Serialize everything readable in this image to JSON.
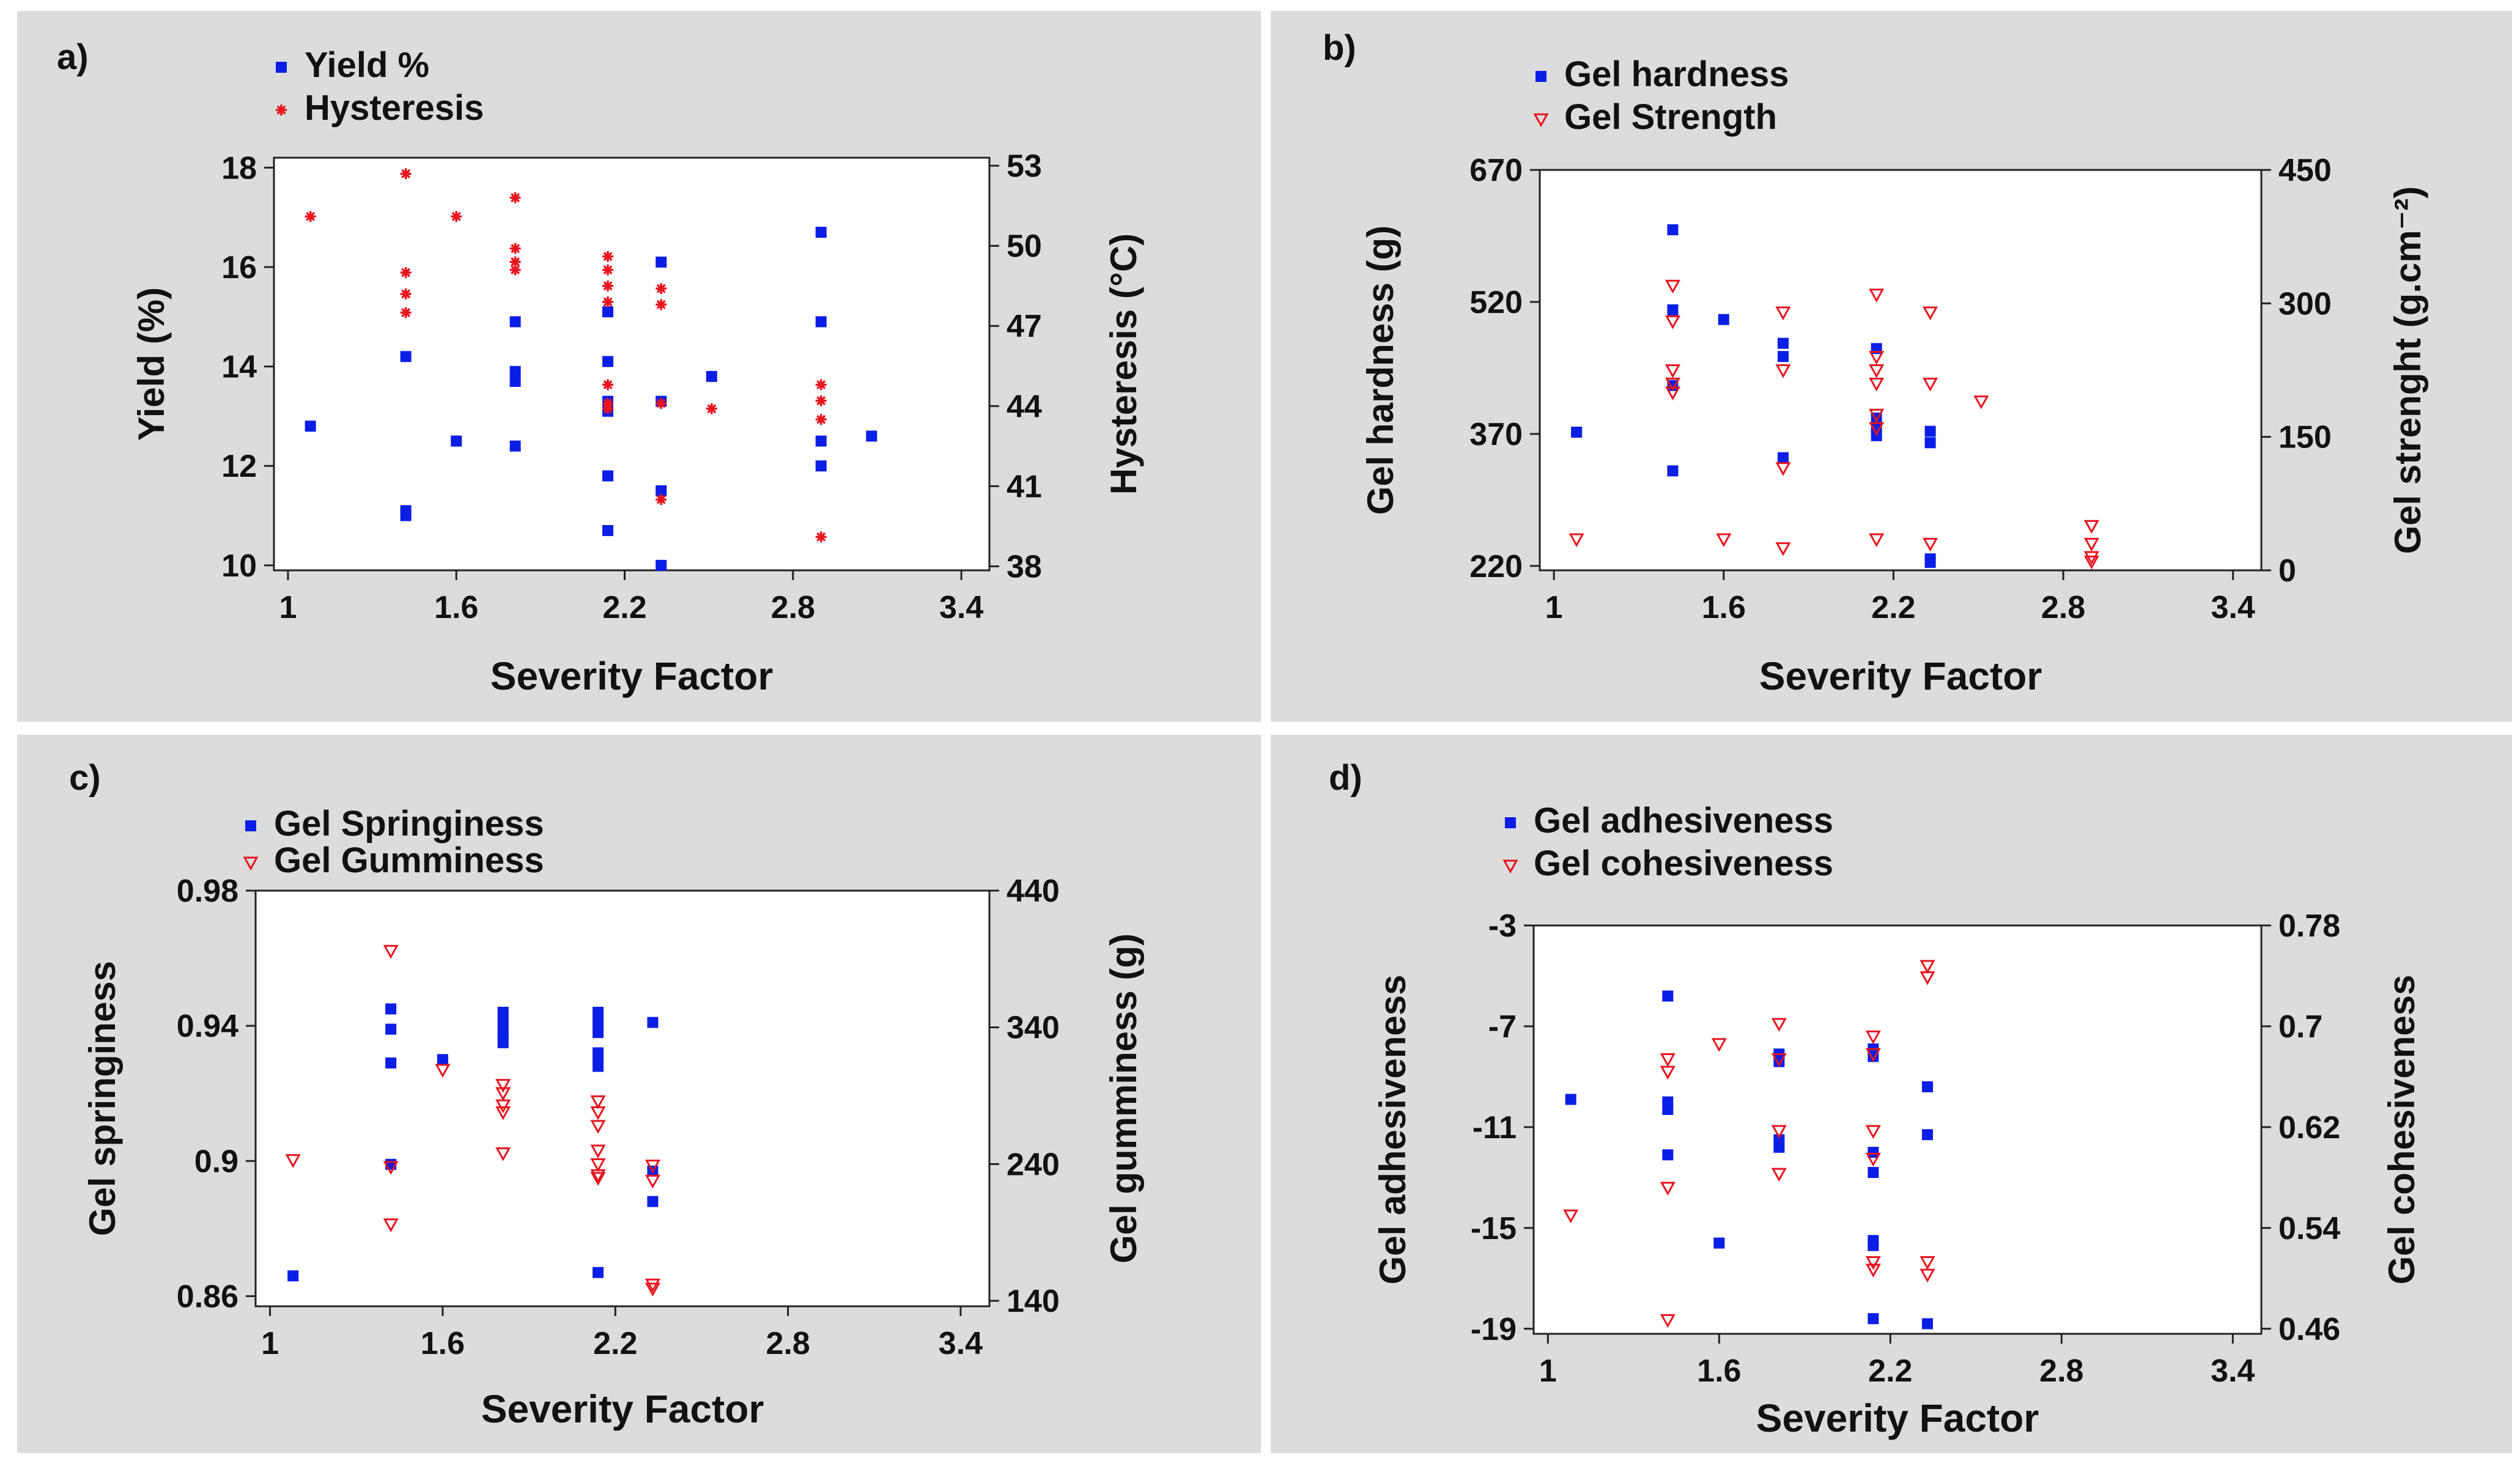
{
  "colors": {
    "blue": "#0a1ee6",
    "red": "#e8141e",
    "panel_bg": "#dcdcdc"
  },
  "chart_data": [
    {
      "id": "a",
      "panel_label": "a)",
      "type": "scatter",
      "xlabel": "Severity Factor",
      "ylabel": "Yield (%)",
      "y2label": "Hysteresis (°C)",
      "xlim": [
        0.95,
        3.5
      ],
      "ylim": [
        9.9,
        18.2
      ],
      "y2lim": [
        37.85,
        53.3
      ],
      "xticks": [
        "1",
        "1.6",
        "2.2",
        "2.8",
        "3.4"
      ],
      "yticks": [
        "10",
        "12",
        "14",
        "16",
        "18"
      ],
      "y2ticks": [
        "38",
        "41",
        "44",
        "47",
        "50",
        "53"
      ],
      "series": [
        {
          "name": "Yield %",
          "axis": "left",
          "marker": "square",
          "color": "#0a1ee6",
          "x": [
            1.08,
            1.42,
            1.42,
            1.42,
            1.6,
            1.81,
            1.81,
            1.81,
            1.81,
            2.14,
            2.14,
            2.14,
            2.14,
            2.14,
            2.14,
            2.33,
            2.33,
            2.33,
            2.33,
            2.51,
            2.9,
            2.9,
            2.9,
            2.9,
            3.08
          ],
          "y": [
            12.8,
            14.2,
            11.1,
            11.0,
            12.5,
            14.9,
            13.9,
            13.7,
            12.4,
            15.1,
            14.1,
            13.3,
            13.1,
            11.8,
            10.7,
            16.1,
            13.3,
            11.5,
            10.0,
            13.8,
            16.7,
            14.9,
            12.5,
            12.0,
            12.6
          ]
        },
        {
          "name": "Hysteresis",
          "axis": "right",
          "marker": "star",
          "color": "#e8141e",
          "x": [
            1.08,
            1.42,
            1.42,
            1.42,
            1.42,
            1.6,
            1.81,
            1.81,
            1.81,
            1.81,
            2.14,
            2.14,
            2.14,
            2.14,
            2.14,
            2.14,
            2.14,
            2.33,
            2.33,
            2.33,
            2.33,
            2.51,
            2.9,
            2.9,
            2.9,
            2.9
          ],
          "y": [
            51.1,
            52.7,
            49.0,
            48.2,
            47.5,
            51.1,
            51.8,
            49.9,
            49.4,
            49.1,
            49.6,
            49.1,
            48.5,
            47.9,
            44.8,
            44.1,
            43.9,
            48.4,
            47.8,
            44.1,
            40.5,
            43.9,
            44.8,
            44.2,
            43.5,
            39.1
          ]
        }
      ]
    },
    {
      "id": "b",
      "panel_label": "b)",
      "type": "scatter",
      "xlabel": "Severity Factor",
      "ylabel": "Gel hardness (g)",
      "y2label": "Gel strenght (g.cm⁻²)",
      "xlim": [
        0.95,
        3.5
      ],
      "ylim": [
        215,
        670
      ],
      "y2lim": [
        0,
        450
      ],
      "xticks": [
        "1",
        "1.6",
        "2.2",
        "2.8",
        "3.4"
      ],
      "yticks": [
        "220",
        "370",
        "520",
        "670"
      ],
      "y2ticks": [
        "0",
        "150",
        "300",
        "450"
      ],
      "series": [
        {
          "name": "Gel hardness",
          "axis": "left",
          "marker": "square",
          "color": "#0a1ee6",
          "x": [
            1.08,
            1.42,
            1.42,
            1.42,
            1.42,
            1.6,
            1.81,
            1.81,
            1.81,
            2.14,
            2.14,
            2.14,
            2.14,
            2.33,
            2.33,
            2.33,
            2.33
          ],
          "y": [
            372,
            602,
            511,
            425,
            328,
            500,
            473,
            458,
            343,
            467,
            388,
            376,
            368,
            373,
            360,
            228,
            224
          ]
        },
        {
          "name": "Gel Strength",
          "axis": "right",
          "marker": "triangle",
          "color": "#e8141e",
          "x": [
            1.08,
            1.42,
            1.42,
            1.42,
            1.42,
            1.42,
            1.6,
            1.81,
            1.81,
            1.81,
            1.81,
            2.14,
            2.14,
            2.14,
            2.14,
            2.14,
            2.14,
            2.14,
            2.33,
            2.33,
            2.33,
            2.51,
            2.9,
            2.9,
            2.9,
            2.9
          ],
          "y": [
            35,
            320,
            280,
            225,
            210,
            200,
            35,
            290,
            225,
            115,
            25,
            310,
            240,
            225,
            210,
            175,
            160,
            35,
            290,
            210,
            30,
            190,
            50,
            30,
            15,
            10
          ]
        }
      ]
    },
    {
      "id": "c",
      "panel_label": "c)",
      "type": "scatter",
      "xlabel": "Severity Factor",
      "ylabel": "Gel springiness",
      "y2label": "Gel gumminess (g)",
      "xlim": [
        0.95,
        3.5
      ],
      "ylim": [
        0.857,
        0.98
      ],
      "y2lim": [
        136,
        440
      ],
      "xticks": [
        "1",
        "1.6",
        "2.2",
        "2.8",
        "3.4"
      ],
      "yticks": [
        "0.86",
        "0.9",
        "0.94",
        "0.98"
      ],
      "y2ticks": [
        "140",
        "240",
        "340",
        "440"
      ],
      "series": [
        {
          "name": "Gel Springiness",
          "axis": "left",
          "marker": "square",
          "color": "#0a1ee6",
          "x": [
            1.08,
            1.42,
            1.42,
            1.42,
            1.42,
            1.6,
            1.81,
            1.81,
            1.81,
            1.81,
            1.81,
            2.14,
            2.14,
            2.14,
            2.14,
            2.14,
            2.14,
            2.14,
            2.33,
            2.33,
            2.33
          ],
          "y": [
            0.866,
            0.945,
            0.939,
            0.929,
            0.899,
            0.93,
            0.944,
            0.942,
            0.939,
            0.937,
            0.935,
            0.944,
            0.941,
            0.938,
            0.932,
            0.928,
            0.93,
            0.867,
            0.941,
            0.897,
            0.888
          ]
        },
        {
          "name": "Gel Gumminess",
          "axis": "right",
          "marker": "triangle",
          "color": "#e8141e",
          "x": [
            1.08,
            1.42,
            1.42,
            1.42,
            1.6,
            1.81,
            1.81,
            1.81,
            1.81,
            1.81,
            2.14,
            2.14,
            2.14,
            2.14,
            2.14,
            2.14,
            2.14,
            2.33,
            2.33,
            2.33,
            2.33
          ],
          "y": [
            243,
            396,
            238,
            196,
            309,
            298,
            292,
            283,
            278,
            248,
            286,
            278,
            268,
            250,
            240,
            232,
            230,
            239,
            228,
            152,
            149
          ]
        }
      ]
    },
    {
      "id": "d",
      "panel_label": "d)",
      "type": "scatter",
      "xlabel": "Severity Factor",
      "ylabel": "Gel adhesiveness",
      "y2label": "Gel cohesiveness",
      "xlim": [
        0.95,
        3.5
      ],
      "ylim": [
        -19.2,
        -3
      ],
      "y2lim": [
        0.456,
        0.78
      ],
      "xticks": [
        "1",
        "1.6",
        "2.2",
        "2.8",
        "3.4"
      ],
      "yticks": [
        "-3",
        "-7",
        "-11",
        "-15",
        "-19"
      ],
      "y2ticks": [
        "0.78",
        "0.7",
        "0.62",
        "0.54",
        "0.46"
      ],
      "series": [
        {
          "name": "Gel adhesiveness",
          "axis": "left",
          "marker": "square",
          "color": "#0a1ee6",
          "x": [
            1.08,
            1.42,
            1.42,
            1.42,
            1.42,
            1.6,
            1.81,
            1.81,
            1.81,
            1.81,
            2.14,
            2.14,
            2.14,
            2.14,
            2.14,
            2.14,
            2.14,
            2.33,
            2.33,
            2.33
          ],
          "y": [
            -9.9,
            -5.8,
            -10.0,
            -10.3,
            -12.1,
            -15.6,
            -8.1,
            -8.4,
            -11.5,
            -11.8,
            -7.9,
            -8.2,
            -12.0,
            -12.8,
            -15.5,
            -15.7,
            -18.6,
            -9.4,
            -11.3,
            -18.8
          ]
        },
        {
          "name": "Gel cohesiveness",
          "axis": "right",
          "marker": "triangle",
          "color": "#e8141e",
          "x": [
            1.08,
            1.42,
            1.42,
            1.42,
            1.42,
            1.6,
            1.81,
            1.81,
            1.81,
            1.81,
            2.14,
            2.14,
            2.14,
            2.14,
            2.14,
            2.14,
            2.33,
            2.33,
            2.33,
            2.33
          ],
          "y": [
            0.55,
            0.674,
            0.664,
            0.572,
            0.467,
            0.686,
            0.702,
            0.674,
            0.617,
            0.583,
            0.692,
            0.678,
            0.617,
            0.595,
            0.513,
            0.507,
            0.748,
            0.739,
            0.513,
            0.503
          ]
        }
      ]
    }
  ]
}
